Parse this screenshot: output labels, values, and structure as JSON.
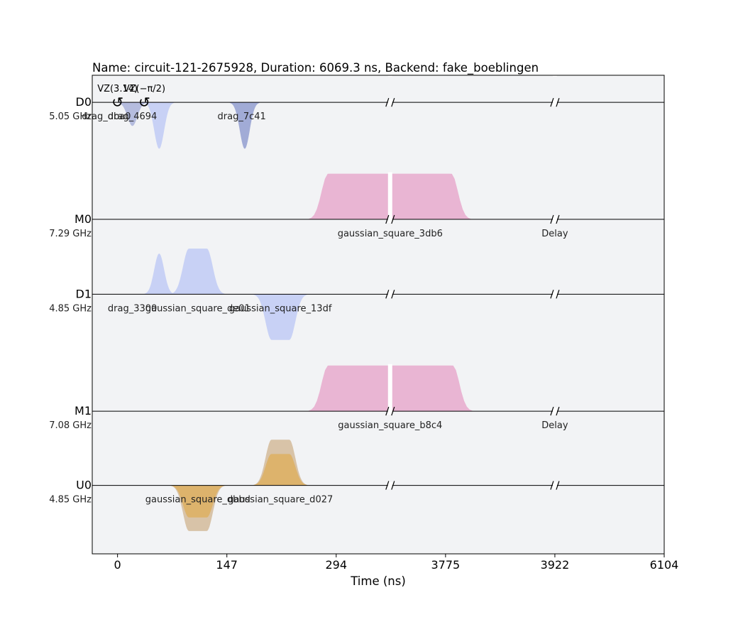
{
  "chart_data": {
    "type": "pulse_schedule",
    "title": "Name: circuit-121-2675928, Duration: 6069.3 ns, Backend: fake_boeblingen",
    "xlabel": "Time (ns)",
    "x_ticks": [
      "0",
      "147",
      "294",
      "3775",
      "3922",
      "6104"
    ],
    "x_tick_positions": [
      0,
      147,
      294,
      441,
      588,
      735
    ],
    "xlim": [
      -34,
      735
    ],
    "axis_breaks": [
      366.5,
      588
    ],
    "channels": [
      {
        "name": "D0",
        "freq": "5.05 GHz",
        "baseline": 0
      },
      {
        "name": "M0",
        "freq": "7.29 GHz",
        "baseline": -1.64
      },
      {
        "name": "D1",
        "freq": "4.85 GHz",
        "baseline": -2.69
      },
      {
        "name": "M1",
        "freq": "7.08 GHz",
        "baseline": -4.33
      },
      {
        "name": "U0",
        "freq": "4.85 GHz",
        "baseline": -5.37
      }
    ],
    "ylim": [
      -6.33,
      0.38
    ],
    "waveforms": [
      {
        "channel": "D0",
        "kind": "gaussian",
        "start": 0,
        "end": 40,
        "peak": -0.33,
        "color": "#a0aad6",
        "alpha": 0.75
      },
      {
        "channel": "D0",
        "kind": "gaussian",
        "start": 36,
        "end": 76,
        "peak": -0.65,
        "color": "#c3cdf5",
        "alpha": 0.9
      },
      {
        "channel": "D0",
        "kind": "gaussian",
        "start": 151,
        "end": 191,
        "peak": -0.65,
        "color": "#98a3d3",
        "alpha": 0.9
      },
      {
        "channel": "M0",
        "kind": "gaussian_square",
        "start": 257,
        "end": 475,
        "ramp": 26,
        "peak": 0.64,
        "color": "#e8b1d1",
        "alpha": 0.95
      },
      {
        "channel": "D1",
        "kind": "gaussian",
        "start": 36,
        "end": 76,
        "peak": 0.57,
        "color": "#c3cdf5",
        "alpha": 0.9
      },
      {
        "channel": "D1",
        "kind": "gaussian_square",
        "start": 72,
        "end": 144,
        "ramp": 24,
        "peak": 0.64,
        "color": "#c3cdf5",
        "alpha": 0.9
      },
      {
        "channel": "D1",
        "kind": "gaussian_square",
        "start": 183,
        "end": 255,
        "ramp": 24,
        "peak": -0.64,
        "color": "#c3cdf5",
        "alpha": 0.9
      },
      {
        "channel": "M1",
        "kind": "gaussian_square",
        "start": 257,
        "end": 477,
        "ramp": 26,
        "peak": 0.64,
        "color": "#e8b1d1",
        "alpha": 0.95
      },
      {
        "channel": "U0",
        "kind": "gaussian_square",
        "start": 72,
        "end": 144,
        "ramp": 24,
        "peak": -0.64,
        "color": "#d8c3a8",
        "alpha": 1
      },
      {
        "channel": "U0",
        "kind": "gaussian_square",
        "start": 72,
        "end": 144,
        "ramp": 24,
        "peak": -0.45,
        "color": "#deb062",
        "alpha": 0.85
      },
      {
        "channel": "U0",
        "kind": "gaussian_square",
        "start": 183,
        "end": 255,
        "ramp": 24,
        "peak": 0.64,
        "color": "#d8c3a8",
        "alpha": 1
      },
      {
        "channel": "U0",
        "kind": "gaussian_square",
        "start": 183,
        "end": 255,
        "ramp": 24,
        "peak": 0.44,
        "color": "#deb062",
        "alpha": 0.85
      }
    ],
    "pulse_labels": [
      {
        "channel": "D0",
        "x": -15,
        "text": "drag_dba0"
      },
      {
        "channel": "D0",
        "x": 20,
        "text": "drag_4694"
      },
      {
        "channel": "D0",
        "x": 167,
        "text": "drag_7c41"
      },
      {
        "channel": "M0",
        "x": 366.5,
        "text": "gaussian_square_3db6"
      },
      {
        "channel": "M0",
        "x": 588,
        "text": "Delay"
      },
      {
        "channel": "D1",
        "x": 20,
        "text": "drag_3300"
      },
      {
        "channel": "D1",
        "x": 108,
        "text": "gaussian_square_de01"
      },
      {
        "channel": "D1",
        "x": 219,
        "text": "gaussian_square_13df"
      },
      {
        "channel": "M1",
        "x": 366.5,
        "text": "gaussian_square_b8c4"
      },
      {
        "channel": "M1",
        "x": 588,
        "text": "Delay"
      },
      {
        "channel": "U0",
        "x": 108,
        "text": "gaussian_square_dbbd"
      },
      {
        "channel": "U0",
        "x": 219,
        "text": "gaussian_square_d027"
      }
    ],
    "frame_changes": [
      {
        "channel": "D0",
        "x": 0,
        "text": "VZ(3.14)"
      },
      {
        "channel": "D0",
        "x": 36,
        "text": "VZ(−π/2)"
      }
    ],
    "grid": false,
    "background": "#f2f3f5"
  }
}
